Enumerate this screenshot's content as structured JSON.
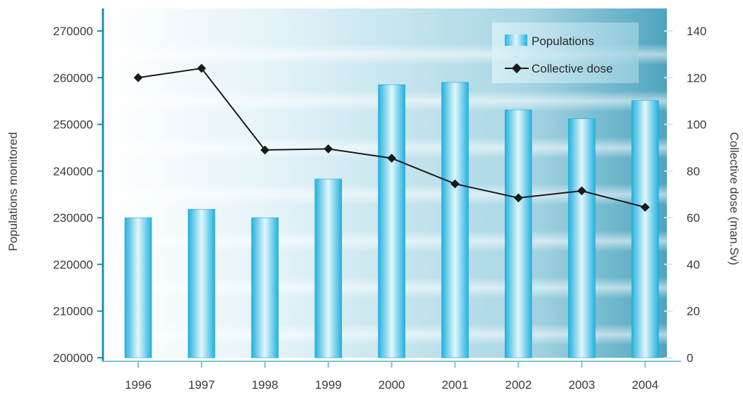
{
  "chart_data": {
    "type": "bar",
    "categories": [
      "1996",
      "1997",
      "1998",
      "1999",
      "2000",
      "2001",
      "2002",
      "2003",
      "2004"
    ],
    "series": [
      {
        "name": "Populations",
        "type": "bar",
        "axis": "left",
        "values": [
          230000,
          231800,
          230000,
          238300,
          258500,
          259000,
          253100,
          251200,
          255100
        ]
      },
      {
        "name": "Collective dose",
        "type": "line",
        "axis": "right",
        "values": [
          120,
          124,
          89,
          89.5,
          85.5,
          74.5,
          68.5,
          71.5,
          64.5
        ]
      }
    ],
    "ylabel": "Populations monitored",
    "y2label": "Collective dose (man.Sv)",
    "ylim": [
      200000,
      270000
    ],
    "y2lim": [
      0,
      140
    ],
    "yticks": [
      "200000",
      "210000",
      "220000",
      "230000",
      "240000",
      "250000",
      "260000",
      "270000"
    ],
    "y2ticks": [
      "0",
      "20",
      "40",
      "60",
      "80",
      "100",
      "120",
      "140"
    ],
    "legend_position": "top-right",
    "colors": {
      "bar": "#29b4dc",
      "line": "#1a1a1a",
      "background": "#6ab7cc"
    }
  }
}
